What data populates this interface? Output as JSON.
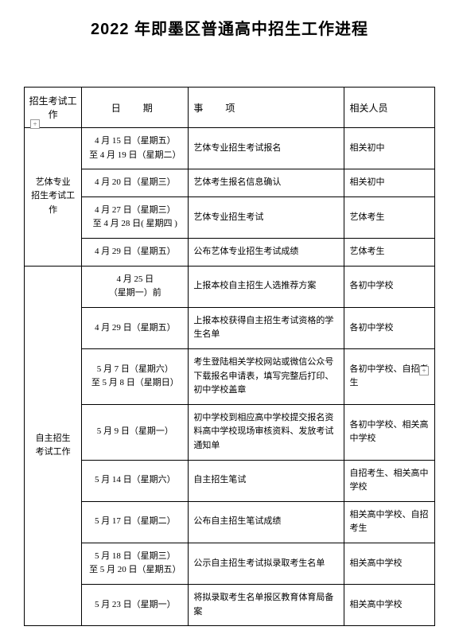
{
  "title": "2022 年即墨区普通高中招生工作进程",
  "headers": {
    "work": "招生考试工作",
    "date": "日　期",
    "item": "事　项",
    "person": "相关人员"
  },
  "sections": [
    {
      "name": "艺体专业\n招生考试工作",
      "rows": [
        {
          "date": "4 月 15 日（星期五）\n至 4 月 19 日（星期二）",
          "item": "艺体专业招生考试报名",
          "person": "相关初中"
        },
        {
          "date": "4 月 20 日（星期三）",
          "item": "艺体考生报名信息确认",
          "person": "相关初中"
        },
        {
          "date": "4 月 27 日（星期三）\n至 4 月 28 日( 星期四 )",
          "item": "艺体专业招生考试",
          "person": "艺体考生"
        },
        {
          "date": "4 月 29 日（星期五）",
          "item": "公布艺体专业招生考试成绩",
          "person": "艺体考生"
        }
      ]
    },
    {
      "name": "自主招生\n考试工作",
      "rows": [
        {
          "date": "4 月 25 日\n（星期一）前",
          "item": "上报本校自主招生人选推荐方案",
          "person": "各初中学校"
        },
        {
          "date": "4 月 29 日（星期五）",
          "item": "上报本校获得自主招生考试资格的学生名单",
          "person": "各初中学校"
        },
        {
          "date": "5 月 7 日（星期六）\n至 5 月 8 日（星期日）",
          "item": "考生登陆相关学校网站或微信公众号下载报名申请表，填写完整后打印、初中学校盖章",
          "person": "各初中学校、自招考生"
        },
        {
          "date": "5 月 9 日（星期一）",
          "item": "初中学校到相应高中学校提交报名资料高中学校现场审核资料、发放考试通知单",
          "person": "各初中学校、相关高中学校"
        },
        {
          "date": "5 月 14 日（星期六）",
          "item": "自主招生笔试",
          "person": "自招考生、相关高中学校"
        },
        {
          "date": "5 月 17 日（星期二）",
          "item": "公布自主招生笔试成绩",
          "person": "相关高中学校、自招考生"
        },
        {
          "date": "5 月 18 日（星期三）\n至 5 月 20 日（星期五）",
          "item": "公示自主招生考试拟录取考生名单",
          "person": "相关高中学校"
        },
        {
          "date": "5 月 23 日（星期一）",
          "item": "将拟录取考生名单报区教育体育局备案",
          "person": "相关高中学校"
        }
      ]
    }
  ],
  "markers": {
    "left": "+",
    "right": "+"
  }
}
